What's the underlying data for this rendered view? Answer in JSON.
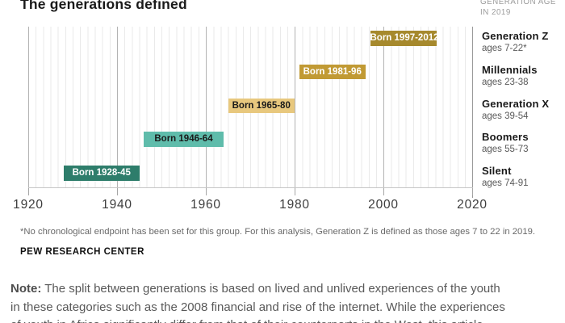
{
  "title": "The generations defined",
  "column_header": {
    "line1": "GENERATION AGE",
    "line2": "IN 2019"
  },
  "chart_data": {
    "type": "bar",
    "orientation": "horizontal-range-timeline",
    "title": "The generations defined",
    "x_axis": {
      "min": 1920,
      "max": 2020,
      "ticks": [
        1920,
        1940,
        1960,
        1980,
        2000,
        2020
      ],
      "grid": true,
      "minor_grid": true
    },
    "legend_position": "right",
    "bars": [
      {
        "generation": "Generation Z",
        "age_label": "ages 7-22*",
        "bar_label": "Born 1997-2012",
        "start_year": 1997,
        "end_year": 2012,
        "color": "#a6892d",
        "label_color": "#ffffff"
      },
      {
        "generation": "Millennials",
        "age_label": "ages 23-38",
        "bar_label": "Born 1981-96",
        "start_year": 1981,
        "end_year": 1996,
        "color": "#c19a34",
        "label_color": "#ffffff"
      },
      {
        "generation": "Generation X",
        "age_label": "ages 39-54",
        "bar_label": "Born 1965-80",
        "start_year": 1965,
        "end_year": 1980,
        "color": "#e8c87e",
        "label_color": "#1a1a1a"
      },
      {
        "generation": "Boomers",
        "age_label": "ages 55-73",
        "bar_label": "Born 1946-64",
        "start_year": 1946,
        "end_year": 1964,
        "color": "#5fbcab",
        "label_color": "#1a1a1a"
      },
      {
        "generation": "Silent",
        "age_label": "ages 74-91",
        "bar_label": "Born 1928-45",
        "start_year": 1928,
        "end_year": 1945,
        "color": "#2e7d6b",
        "label_color": "#ffffff"
      }
    ]
  },
  "footnote": "*No chronological endpoint has been set for this group. For this analysis, Generation Z is defined as those ages 7 to 22 in 2019.",
  "source": "PEW RESEARCH CENTER",
  "note": {
    "label": "Note:",
    "lines": [
      "The split between generations is based on lived and unlived experiences of the youth",
      "in these categories such as the 2008 financial and rise of the internet. While the experiences",
      "of youth in Africa significantly differ from that of their counterparts in the West, this article"
    ]
  }
}
